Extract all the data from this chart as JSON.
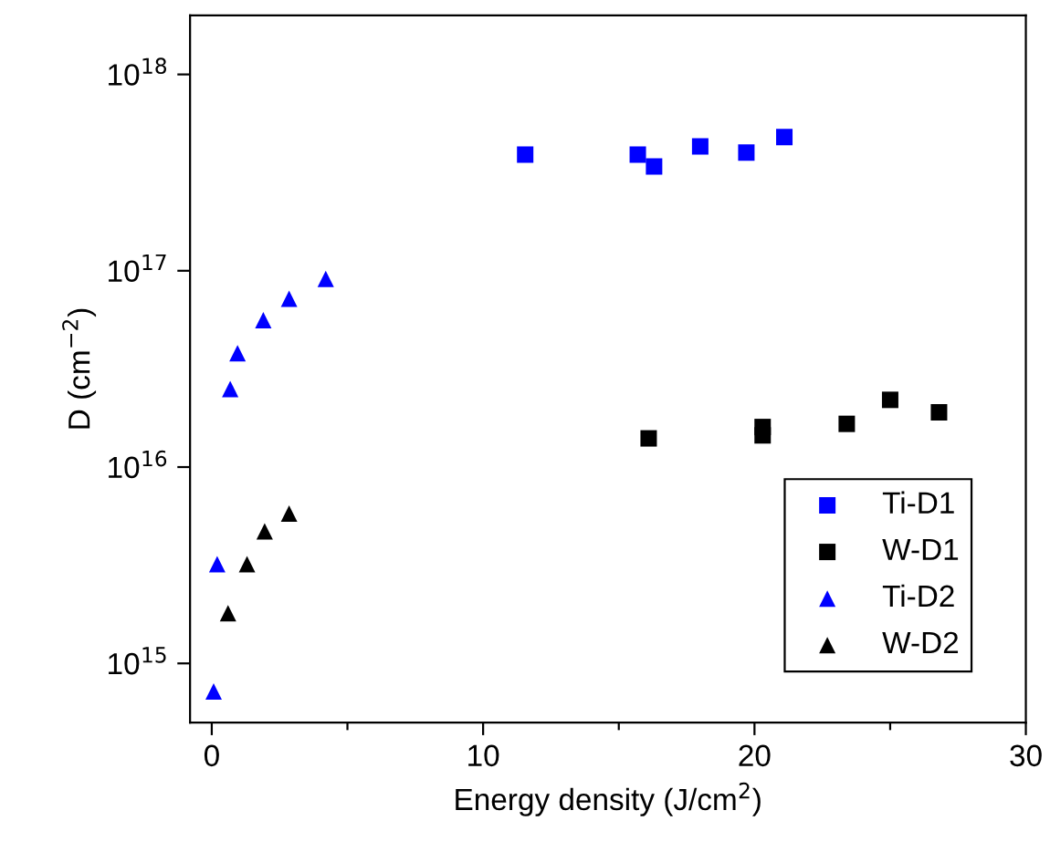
{
  "chart_data": {
    "type": "scatter",
    "xlabel": "Energy density (J/cm$^{2}$)",
    "ylabel": "D (cm$^{−2}$)",
    "log": "y",
    "grid": false,
    "legend": "lower right",
    "xlim": [
      -0.8,
      30
    ],
    "xticks": [
      0,
      {
        "value": 5,
        "label": null
      },
      10,
      {
        "value": 15,
        "label": null
      },
      20,
      {
        "value": 25,
        "label": null
      },
      30
    ],
    "ylim": [
      500000000000000.0,
      2e+18
    ],
    "yticks": [
      {
        "value": 1000000000000000.0,
        "label": "10$^{15}$"
      },
      {
        "value": 1e+16,
        "label": "10$^{16}$"
      },
      {
        "value": 1e+17,
        "label": "10$^{17}$"
      },
      {
        "value": 1e+18,
        "label": "10$^{18}$"
      }
    ],
    "series": [
      {
        "name": "Ti-D1",
        "color": "#0000ff",
        "marker": "square",
        "x": [
          11.55,
          15.7,
          16.3,
          18.0,
          19.7,
          21.1
        ],
        "values": [
          3.9e+17,
          3.9e+17,
          3.4e+17,
          4.3e+17,
          4e+17,
          4.8e+17
        ]
      },
      {
        "name": "W-D1",
        "color": "#000000",
        "marker": "square",
        "x": [
          16.1,
          20.3,
          20.3,
          23.4,
          25.0,
          26.8
        ],
        "values": [
          1.4e+16,
          1.6e+16,
          1.45e+16,
          1.66e+16,
          2.2e+16,
          1.9e+16
        ]
      },
      {
        "name": "Ti-D2",
        "color": "#0000ff",
        "marker": "triangle",
        "x": [
          0.07,
          0.2,
          0.68,
          0.95,
          1.9,
          2.85,
          4.2
        ],
        "values": [
          720000000000000.0,
          3200000000000000.0,
          2.5e+16,
          3.8e+16,
          5.6e+16,
          7.2e+16,
          9.1e+16
        ]
      },
      {
        "name": "W-D2",
        "color": "#000000",
        "marker": "triangle",
        "x": [
          0.6,
          1.3,
          1.95,
          2.85
        ],
        "values": [
          1800000000000000.0,
          3200000000000000.0,
          4700000000000000.0,
          5800000000000000.0
        ]
      }
    ]
  }
}
